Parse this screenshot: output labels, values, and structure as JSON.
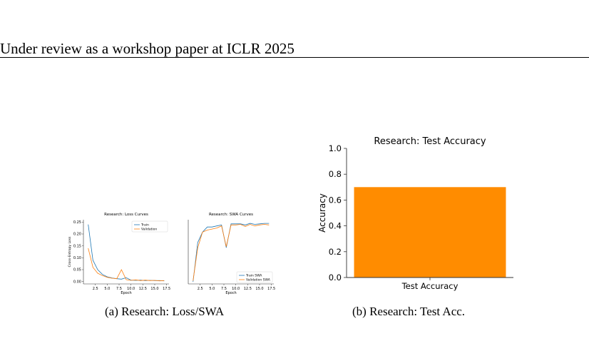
{
  "header": {
    "text": "Under review as a workshop paper at ICLR 2025"
  },
  "figures": {
    "a": {
      "caption": "(a) Research: Loss/SWA"
    },
    "b": {
      "caption": "(b) Research: Test Acc."
    }
  },
  "chart_data": [
    {
      "type": "line",
      "title": "Research: Loss Curves",
      "xlabel": "Epoch",
      "ylabel": "Cross-Entropy Loss",
      "xlim": [
        0,
        18
      ],
      "ylim": [
        -0.01,
        0.26
      ],
      "xticks": [
        "2.5",
        "5.0",
        "7.5",
        "10.0",
        "12.5",
        "15.0",
        "17.5"
      ],
      "yticks": [
        "0.00",
        "0.05",
        "0.10",
        "0.15",
        "0.20",
        "0.25"
      ],
      "legend": "top-right",
      "colors": [
        "#1f77b4",
        "#ff7f0e"
      ],
      "x": [
        1,
        2,
        3,
        4,
        5,
        6,
        7,
        8,
        9,
        10,
        11,
        12,
        13,
        14,
        15,
        16,
        17
      ],
      "series": [
        {
          "name": "Train",
          "values": [
            0.24,
            0.09,
            0.05,
            0.03,
            0.02,
            0.015,
            0.012,
            0.01,
            0.016,
            0.006,
            0.005,
            0.006,
            0.004,
            0.005,
            0.004,
            0.004,
            0.003
          ]
        },
        {
          "name": "Validation",
          "values": [
            0.14,
            0.06,
            0.035,
            0.025,
            0.018,
            0.014,
            0.012,
            0.05,
            0.008,
            0.005,
            0.007,
            0.004,
            0.006,
            0.004,
            0.005,
            0.003,
            0.004
          ]
        }
      ]
    },
    {
      "type": "line",
      "title": "Research: SWA Curves",
      "xlabel": "Epoch",
      "ylabel": "",
      "xlim": [
        0,
        18
      ],
      "ylim": [
        0.4,
        1.02
      ],
      "xticks": [
        "2.5",
        "5.0",
        "7.5",
        "10.0",
        "12.5",
        "15.0",
        "17.5"
      ],
      "legend": "bottom-right",
      "colors": [
        "#1f77b4",
        "#ff7f0e"
      ],
      "x": [
        1,
        2,
        3,
        4,
        5,
        6,
        7,
        8,
        9,
        10,
        11,
        12,
        13,
        14,
        15,
        16,
        17
      ],
      "series": [
        {
          "name": "Train SWA",
          "values": [
            0.42,
            0.8,
            0.9,
            0.95,
            0.95,
            0.96,
            0.97,
            0.75,
            0.98,
            0.98,
            0.98,
            0.97,
            0.985,
            0.975,
            0.98,
            0.985,
            0.985
          ]
        },
        {
          "name": "Validation SWA",
          "values": [
            0.43,
            0.75,
            0.9,
            0.92,
            0.93,
            0.94,
            0.96,
            0.76,
            0.97,
            0.97,
            0.975,
            0.955,
            0.975,
            0.96,
            0.97,
            0.975,
            0.97
          ]
        }
      ]
    },
    {
      "type": "bar",
      "title": "Research: Test Accuracy",
      "ylabel": "Accuracy",
      "categories": [
        "Test Accuracy"
      ],
      "values": [
        0.7
      ],
      "ylim": [
        0,
        1.0
      ],
      "yticks": [
        "0.0",
        "0.2",
        "0.4",
        "0.6",
        "0.8",
        "1.0"
      ],
      "color": "#ff8c00"
    }
  ]
}
